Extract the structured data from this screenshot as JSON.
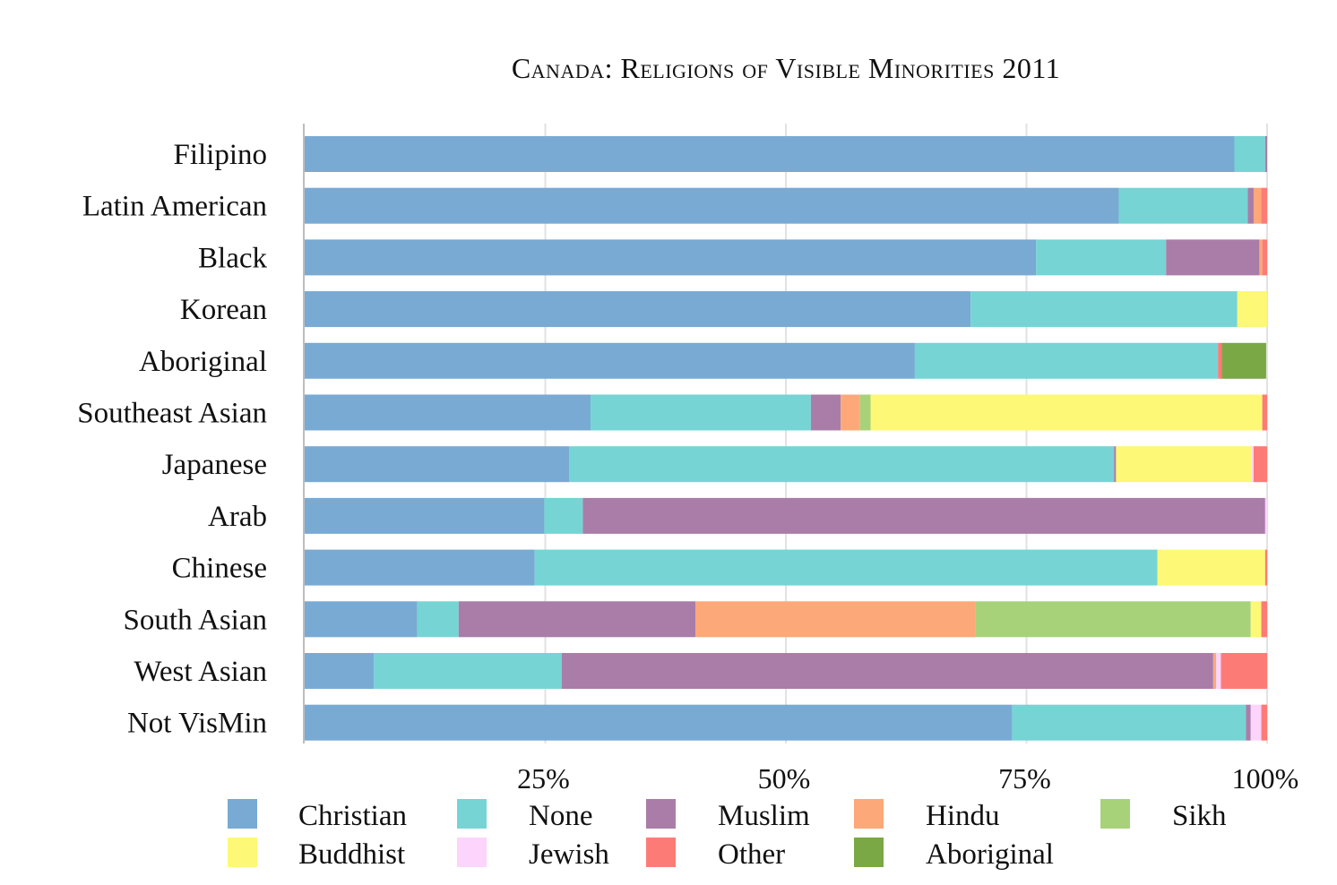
{
  "chart_data": {
    "type": "bar",
    "orientation": "horizontal",
    "stacked": true,
    "title": "Canada: Religions of Visible Minorities 2011",
    "xlabel": "",
    "ylabel": "",
    "xlim": [
      0,
      100
    ],
    "x_ticks": [
      "25%",
      "50%",
      "75%",
      "100%"
    ],
    "x_tick_values": [
      25,
      50,
      75,
      100
    ],
    "grid": true,
    "legend_position": "bottom",
    "categories": [
      "Filipino",
      "Latin American",
      "Black",
      "Korean",
      "Aboriginal",
      "Southeast Asian",
      "Japanese",
      "Arab",
      "Chinese",
      "South Asian",
      "West Asian",
      "Not VisMin"
    ],
    "series": [
      {
        "name": "Christian",
        "color": "#78aad4",
        "values": [
          96.6,
          84.6,
          76.0,
          69.2,
          63.4,
          29.7,
          27.5,
          24.9,
          23.9,
          11.7,
          7.2,
          73.5
        ]
      },
      {
        "name": "None",
        "color": "#76d4d4",
        "values": [
          3.2,
          13.4,
          13.5,
          27.7,
          31.5,
          22.9,
          56.6,
          4.0,
          64.7,
          4.3,
          19.5,
          24.3
        ]
      },
      {
        "name": "Muslim",
        "color": "#a97da8",
        "values": [
          0.2,
          0.6,
          9.7,
          0,
          0,
          3.1,
          0.2,
          70.9,
          0,
          24.6,
          67.7,
          0.5
        ]
      },
      {
        "name": "Hindu",
        "color": "#fda878",
        "values": [
          0,
          0.8,
          0.3,
          0,
          0,
          2.0,
          0,
          0,
          0,
          29.1,
          0.3,
          0
        ]
      },
      {
        "name": "Sikh",
        "color": "#a8d27a",
        "values": [
          0,
          0,
          0,
          0,
          0,
          1.1,
          0,
          0,
          0,
          28.6,
          0,
          0
        ]
      },
      {
        "name": "Buddhist",
        "color": "#fdf875",
        "values": [
          0,
          0,
          0,
          3.1,
          0,
          40.7,
          14.1,
          0,
          11.2,
          1.1,
          0,
          0
        ]
      },
      {
        "name": "Jewish",
        "color": "#fcd4fc",
        "values": [
          0,
          0,
          0,
          0,
          0,
          0,
          0.2,
          0.2,
          0,
          0,
          0.5,
          1.1
        ]
      },
      {
        "name": "Other",
        "color": "#fd7b76",
        "values": [
          0,
          0.6,
          0.5,
          0,
          0.4,
          0.5,
          1.4,
          0,
          0.2,
          0.6,
          4.8,
          0.6
        ]
      },
      {
        "name": "Aboriginal",
        "color": "#7aa844",
        "values": [
          0,
          0,
          0,
          0,
          4.6,
          0,
          0,
          0,
          0,
          0,
          0,
          0
        ]
      }
    ],
    "legend": [
      "Christian",
      "None",
      "Muslim",
      "Hindu",
      "Sikh",
      "Buddhist",
      "Jewish",
      "Other",
      "Aboriginal"
    ]
  }
}
